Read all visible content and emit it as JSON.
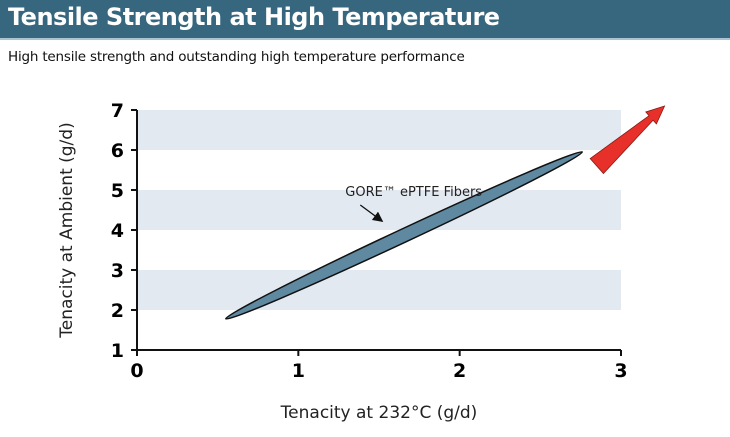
{
  "header": {
    "title": "Tensile Strength at High Temperature"
  },
  "subtitle": "High tensile strength and outstanding high temperature performance",
  "chart_data": {
    "type": "scatter",
    "title": "Tensile Strength at High Temperature",
    "xlabel": "Tenacity at 232°C (g/d)",
    "ylabel": "Tenacity at Ambient (g/d)",
    "xlim": [
      0,
      3
    ],
    "ylim": [
      1,
      7
    ],
    "xticks": [
      "0",
      "1",
      "2",
      "3"
    ],
    "yticks": [
      "1",
      "2",
      "3",
      "4",
      "5",
      "6",
      "7"
    ],
    "bands": [
      [
        2,
        3
      ],
      [
        4,
        5
      ],
      [
        6,
        7
      ]
    ],
    "region": {
      "name": "GORE™ ePTFE Fibers",
      "from": [
        0.55,
        1.78
      ],
      "to": [
        2.76,
        5.95
      ],
      "minor_width": 0.35
    },
    "annotation": {
      "text": "GORE™ ePTFE Fibers",
      "at": [
        1.57,
        4.8
      ],
      "points_to": [
        1.52,
        4.22
      ]
    },
    "trend_arrow": {
      "from": [
        2.85,
        5.6
      ],
      "to": [
        3.27,
        7.1
      ],
      "color": "#e8302a"
    },
    "colors": {
      "band": "#e3e9f0",
      "region": "#5f89a1",
      "header": "#36677f"
    }
  }
}
